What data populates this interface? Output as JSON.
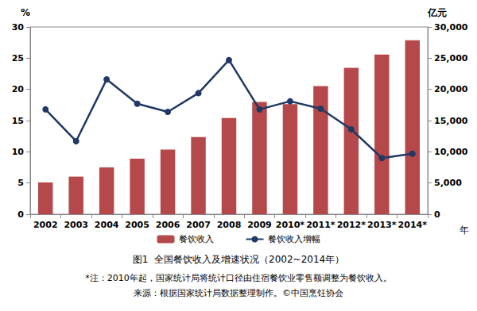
{
  "chart_data": {
    "type": "bar",
    "title": "图1  全国餐饮收入及增速状况（2002~2014年）",
    "annotations": [
      "*注：2010年起，国家统计局将统计口径由住宿餐饮业零售额调整为餐饮收入。",
      "来源：根据国家统计局数据整理制作。©中国烹饪协会"
    ],
    "x_label": "年",
    "y_label": "%",
    "y2_label": "亿元",
    "categories": [
      "2002",
      "2003",
      "2004",
      "2005",
      "2006",
      "2007",
      "2008",
      "2009",
      "2010*",
      "2011*",
      "2012*",
      "2013*",
      "2014*"
    ],
    "series": [
      {
        "name": "餐饮收入",
        "type": "bar",
        "axis": "y2",
        "color": "#b5484a",
        "values": [
          5092,
          6026,
          7486,
          8887,
          10346,
          12352,
          15404,
          17998,
          17648,
          20543,
          23448,
          25569,
          27860
        ]
      },
      {
        "name": "餐饮收入增幅",
        "type": "line",
        "color": "#1f3864",
        "marker": "circle",
        "values": [
          16.8,
          11.7,
          21.6,
          17.7,
          16.4,
          19.4,
          24.7,
          16.8,
          18.1,
          16.9,
          13.6,
          9.0,
          9.7
        ]
      }
    ],
    "ylim": [
      0,
      30
    ],
    "yticks": [
      0,
      5,
      10,
      15,
      20,
      25,
      30
    ],
    "y2lim": [
      0,
      30000
    ],
    "y2ticks": [
      0,
      5000,
      10000,
      15000,
      20000,
      25000,
      30000
    ],
    "grid": false,
    "legend": "bottom"
  }
}
